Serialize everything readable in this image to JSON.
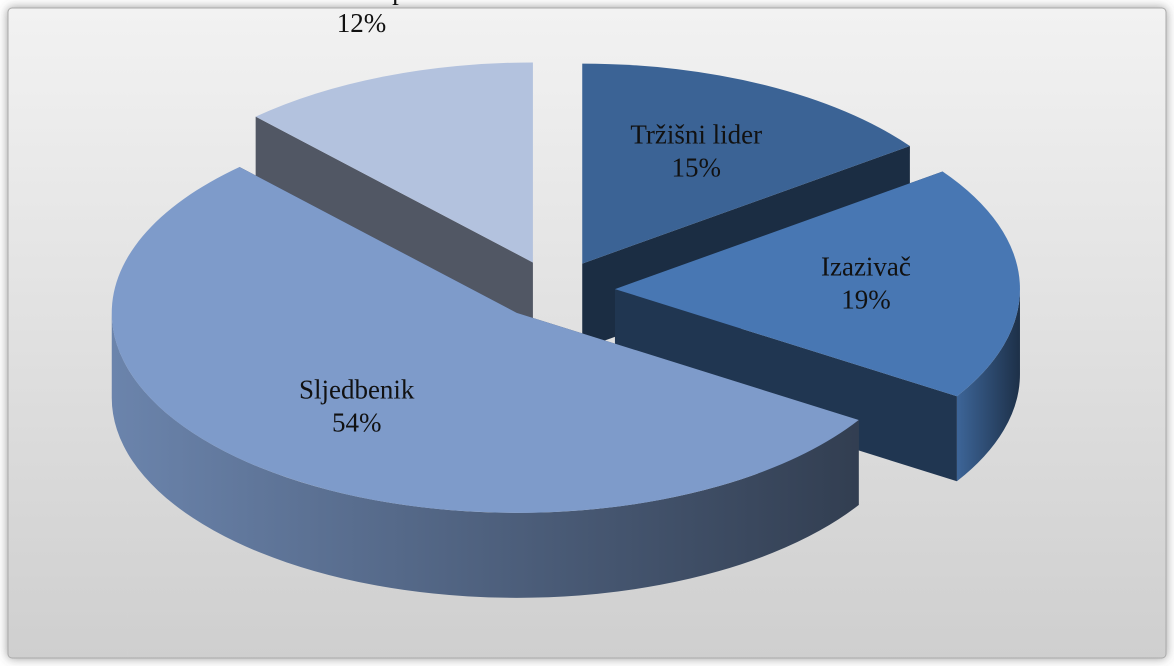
{
  "chart_data": {
    "type": "pie3d",
    "categories": [
      "Tržišni lider",
      "Izazivač",
      "Sljedbenik",
      "Tržišni tamponer"
    ],
    "values": [
      15,
      19,
      54,
      12
    ],
    "value_labels": [
      "15%",
      "19%",
      "54%",
      "12%"
    ],
    "colors": [
      "#3b6395",
      "#4877b3",
      "#7e9bca",
      "#b3c2de"
    ]
  }
}
